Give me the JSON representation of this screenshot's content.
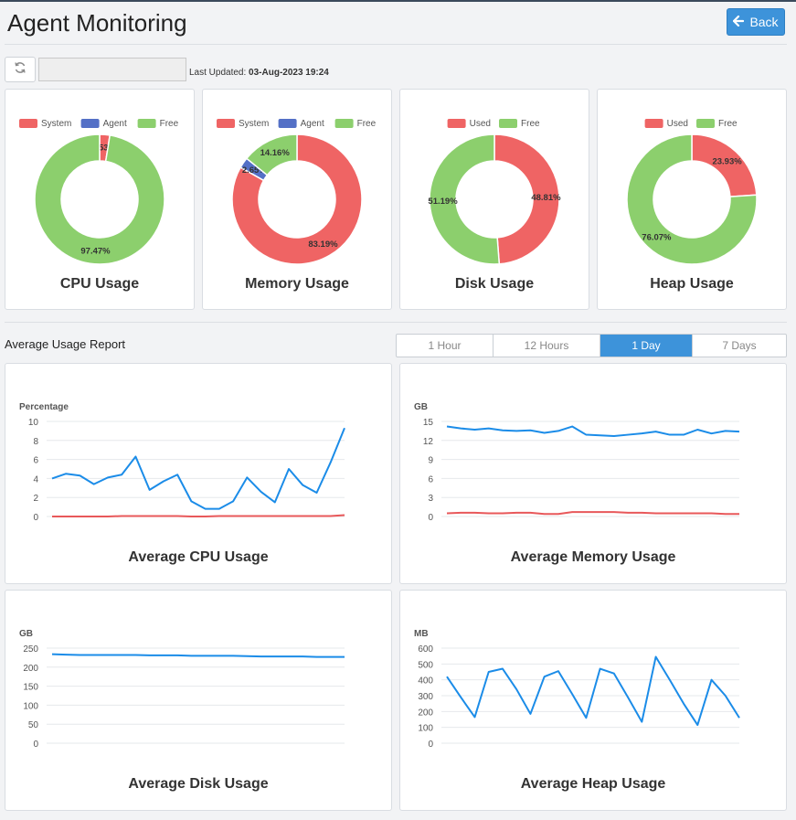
{
  "header": {
    "title": "Agent Monitoring",
    "back_label": "Back"
  },
  "toolbar": {
    "last_updated_label": "Last Updated:",
    "last_updated_value": "03-Aug-2023 19:24",
    "date_input_value": ""
  },
  "colors": {
    "red": "#ef6464",
    "blue": "#5470c6",
    "green": "#8ccf6d",
    "line_blue": "#1b8ce8",
    "line_red": "#e8585a",
    "accent": "#3d93da"
  },
  "donuts": [
    {
      "title": "CPU Usage",
      "legend": [
        "System",
        "Agent",
        "Free"
      ],
      "slices": [
        {
          "name": "System",
          "value": 2.53,
          "label": "2.53%",
          "color": "#ef6464"
        },
        {
          "name": "Free",
          "value": 97.47,
          "label": "97.47%",
          "color": "#8ccf6d"
        }
      ]
    },
    {
      "title": "Memory Usage",
      "legend": [
        "System",
        "Agent",
        "Free"
      ],
      "slices": [
        {
          "name": "System",
          "value": 83.19,
          "label": "83.19%",
          "color": "#ef6464"
        },
        {
          "name": "Agent",
          "value": 2.65,
          "label": "2.65%",
          "color": "#5470c6"
        },
        {
          "name": "Free",
          "value": 14.16,
          "label": "14.16%",
          "color": "#8ccf6d"
        }
      ]
    },
    {
      "title": "Disk Usage",
      "legend": [
        "Used",
        "Free"
      ],
      "slices": [
        {
          "name": "Used",
          "value": 48.81,
          "label": "48.81%",
          "color": "#ef6464"
        },
        {
          "name": "Free",
          "value": 51.19,
          "label": "51.19%",
          "color": "#8ccf6d"
        }
      ]
    },
    {
      "title": "Heap Usage",
      "legend": [
        "Used",
        "Free"
      ],
      "slices": [
        {
          "name": "Used",
          "value": 23.93,
          "label": "23.93%",
          "color": "#ef6464"
        },
        {
          "name": "Free",
          "value": 76.07,
          "label": "76.07%",
          "color": "#8ccf6d"
        }
      ]
    }
  ],
  "report": {
    "title": "Average Usage Report",
    "ranges": [
      "1 Hour",
      "12 Hours",
      "1 Day",
      "7 Days"
    ],
    "active_range": "1 Day"
  },
  "chart_data": [
    {
      "type": "line",
      "title": "Average CPU Usage",
      "ylabel": "Percentage",
      "ylim": [
        0,
        10
      ],
      "yticks": [
        0,
        2,
        4,
        6,
        8,
        10
      ],
      "series": [
        {
          "color": "#1b8ce8",
          "values": [
            4.0,
            4.5,
            4.3,
            3.4,
            4.1,
            4.4,
            6.3,
            2.8,
            3.7,
            4.4,
            1.6,
            0.8,
            0.8,
            1.6,
            4.1,
            2.6,
            1.5,
            5.0,
            3.3,
            2.5,
            5.7,
            9.3
          ]
        },
        {
          "color": "#e8585a",
          "values": [
            0.0,
            0.0,
            0.0,
            0.0,
            0.0,
            0.05,
            0.05,
            0.05,
            0.05,
            0.05,
            0.0,
            0.0,
            0.05,
            0.05,
            0.05,
            0.05,
            0.05,
            0.05,
            0.05,
            0.05,
            0.05,
            0.15
          ]
        }
      ]
    },
    {
      "type": "line",
      "title": "Average Memory Usage",
      "ylabel": "GB",
      "ylim": [
        0,
        15
      ],
      "yticks": [
        0,
        3,
        6,
        9,
        12,
        15
      ],
      "series": [
        {
          "color": "#1b8ce8",
          "values": [
            14.2,
            13.9,
            13.7,
            13.9,
            13.6,
            13.5,
            13.6,
            13.2,
            13.5,
            14.2,
            12.9,
            12.8,
            12.7,
            12.9,
            13.1,
            13.4,
            12.9,
            12.9,
            13.7,
            13.1,
            13.5,
            13.4
          ]
        },
        {
          "color": "#e8585a",
          "values": [
            0.5,
            0.6,
            0.6,
            0.5,
            0.5,
            0.6,
            0.6,
            0.4,
            0.4,
            0.7,
            0.7,
            0.7,
            0.7,
            0.6,
            0.6,
            0.5,
            0.5,
            0.5,
            0.5,
            0.5,
            0.4,
            0.4
          ]
        }
      ]
    },
    {
      "type": "line",
      "title": "Average Disk Usage",
      "ylabel": "GB",
      "ylim": [
        0,
        250
      ],
      "yticks": [
        0,
        50,
        100,
        150,
        200,
        250
      ],
      "series": [
        {
          "color": "#1b8ce8",
          "values": [
            234,
            233,
            232,
            232,
            232,
            232,
            232,
            231,
            231,
            231,
            230,
            230,
            230,
            230,
            229,
            228,
            228,
            228,
            228,
            227,
            227,
            227
          ]
        }
      ]
    },
    {
      "type": "line",
      "title": "Average Heap Usage",
      "ylabel": "MB",
      "ylim": [
        0,
        600
      ],
      "yticks": [
        0,
        100,
        200,
        300,
        400,
        500,
        600
      ],
      "series": [
        {
          "color": "#1b8ce8",
          "values": [
            420,
            290,
            165,
            450,
            470,
            340,
            185,
            420,
            455,
            310,
            160,
            470,
            440,
            290,
            135,
            545,
            400,
            250,
            115,
            400,
            300,
            160
          ]
        }
      ]
    }
  ]
}
